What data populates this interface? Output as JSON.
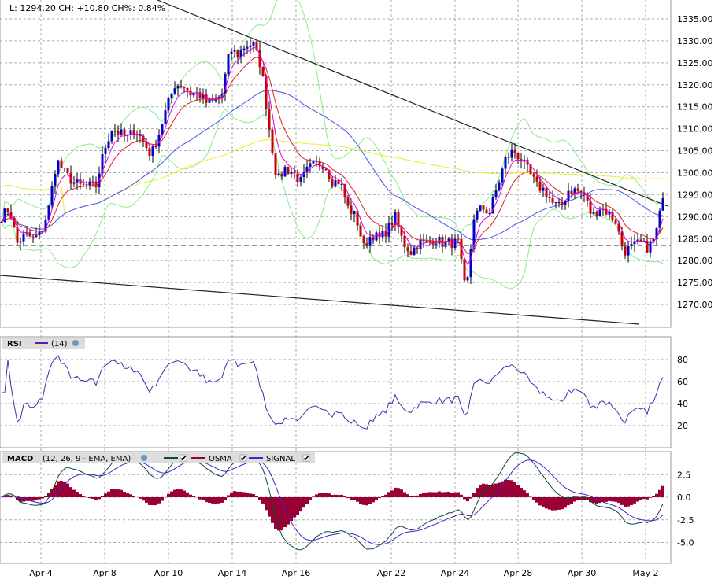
{
  "header": {
    "quote_text": "L: 1294.20 CH: +10.80 CH%: 0.84%"
  },
  "colors": {
    "up": "#0000cc",
    "down": "#cc0000",
    "bollinger": "#88ee88",
    "ema_fast": "#dd00dd",
    "ema_mid": "#dd2222",
    "sma_mid": "#4455ee",
    "sma_long": "#eeee33",
    "rsi": "#5522aa",
    "macd": "#0b4a3a",
    "signal": "#4422cc",
    "osma": "#990033",
    "grid": "#aaaaaa"
  },
  "chart_data": [
    {
      "type": "candlestick",
      "title": "",
      "y_ticks": [
        "1335.00",
        "1330.00",
        "1325.00",
        "1320.00",
        "1315.00",
        "1310.00",
        "1305.00",
        "1300.00",
        "1295.00",
        "1290.00",
        "1285.00",
        "1280.00",
        "1275.00",
        "1270.00"
      ],
      "ylim": [
        1265,
        1338
      ],
      "x_ticks": [
        "Apr 4",
        "Apr 8",
        "Apr 10",
        "Apr 14",
        "Apr 16",
        "Apr 22",
        "Apr 24",
        "Apr 28",
        "Apr 30",
        "May 2"
      ],
      "reference_line": 1283.4,
      "close_samples": [
        1290,
        1292,
        1284,
        1286,
        1285,
        1286,
        1292,
        1303,
        1300,
        1298,
        1297,
        1297,
        1297,
        1305,
        1310,
        1309,
        1308,
        1310,
        1307,
        1304,
        1309,
        1315,
        1320,
        1320,
        1318,
        1318,
        1316,
        1316,
        1318,
        1328,
        1327,
        1329,
        1329,
        1324,
        1310,
        1298,
        1301,
        1300,
        1298,
        1301,
        1302,
        1302,
        1298,
        1298,
        1292,
        1290,
        1283,
        1286,
        1285,
        1287,
        1290,
        1284,
        1282,
        1284,
        1284,
        1285,
        1284,
        1284,
        1284,
        1272,
        1290,
        1292,
        1291,
        1297,
        1303,
        1305,
        1303,
        1300,
        1297,
        1296,
        1293,
        1292,
        1296,
        1296,
        1295,
        1290,
        1292,
        1291,
        1289,
        1282,
        1283,
        1284,
        1283,
        1285,
        1294
      ],
      "last": 1294.2,
      "overlays": [
        "Bollinger",
        "EMA",
        "EMA",
        "SMA",
        "SMA"
      ],
      "grid": true
    },
    {
      "type": "line",
      "name": "RSI",
      "params": "(14)",
      "y_ticks": [
        "80",
        "60",
        "40",
        "20"
      ],
      "ylim": [
        0,
        100
      ]
    },
    {
      "type": "line+bar",
      "name": "MACD",
      "params": "(12, 26, 9 - EMA, EMA)",
      "legend": [
        "OSMA",
        "SIGNAL"
      ],
      "y_ticks": [
        "2.5",
        "0.0",
        "-2.5",
        "-5.0"
      ],
      "ylim": [
        -7,
        5
      ]
    }
  ]
}
